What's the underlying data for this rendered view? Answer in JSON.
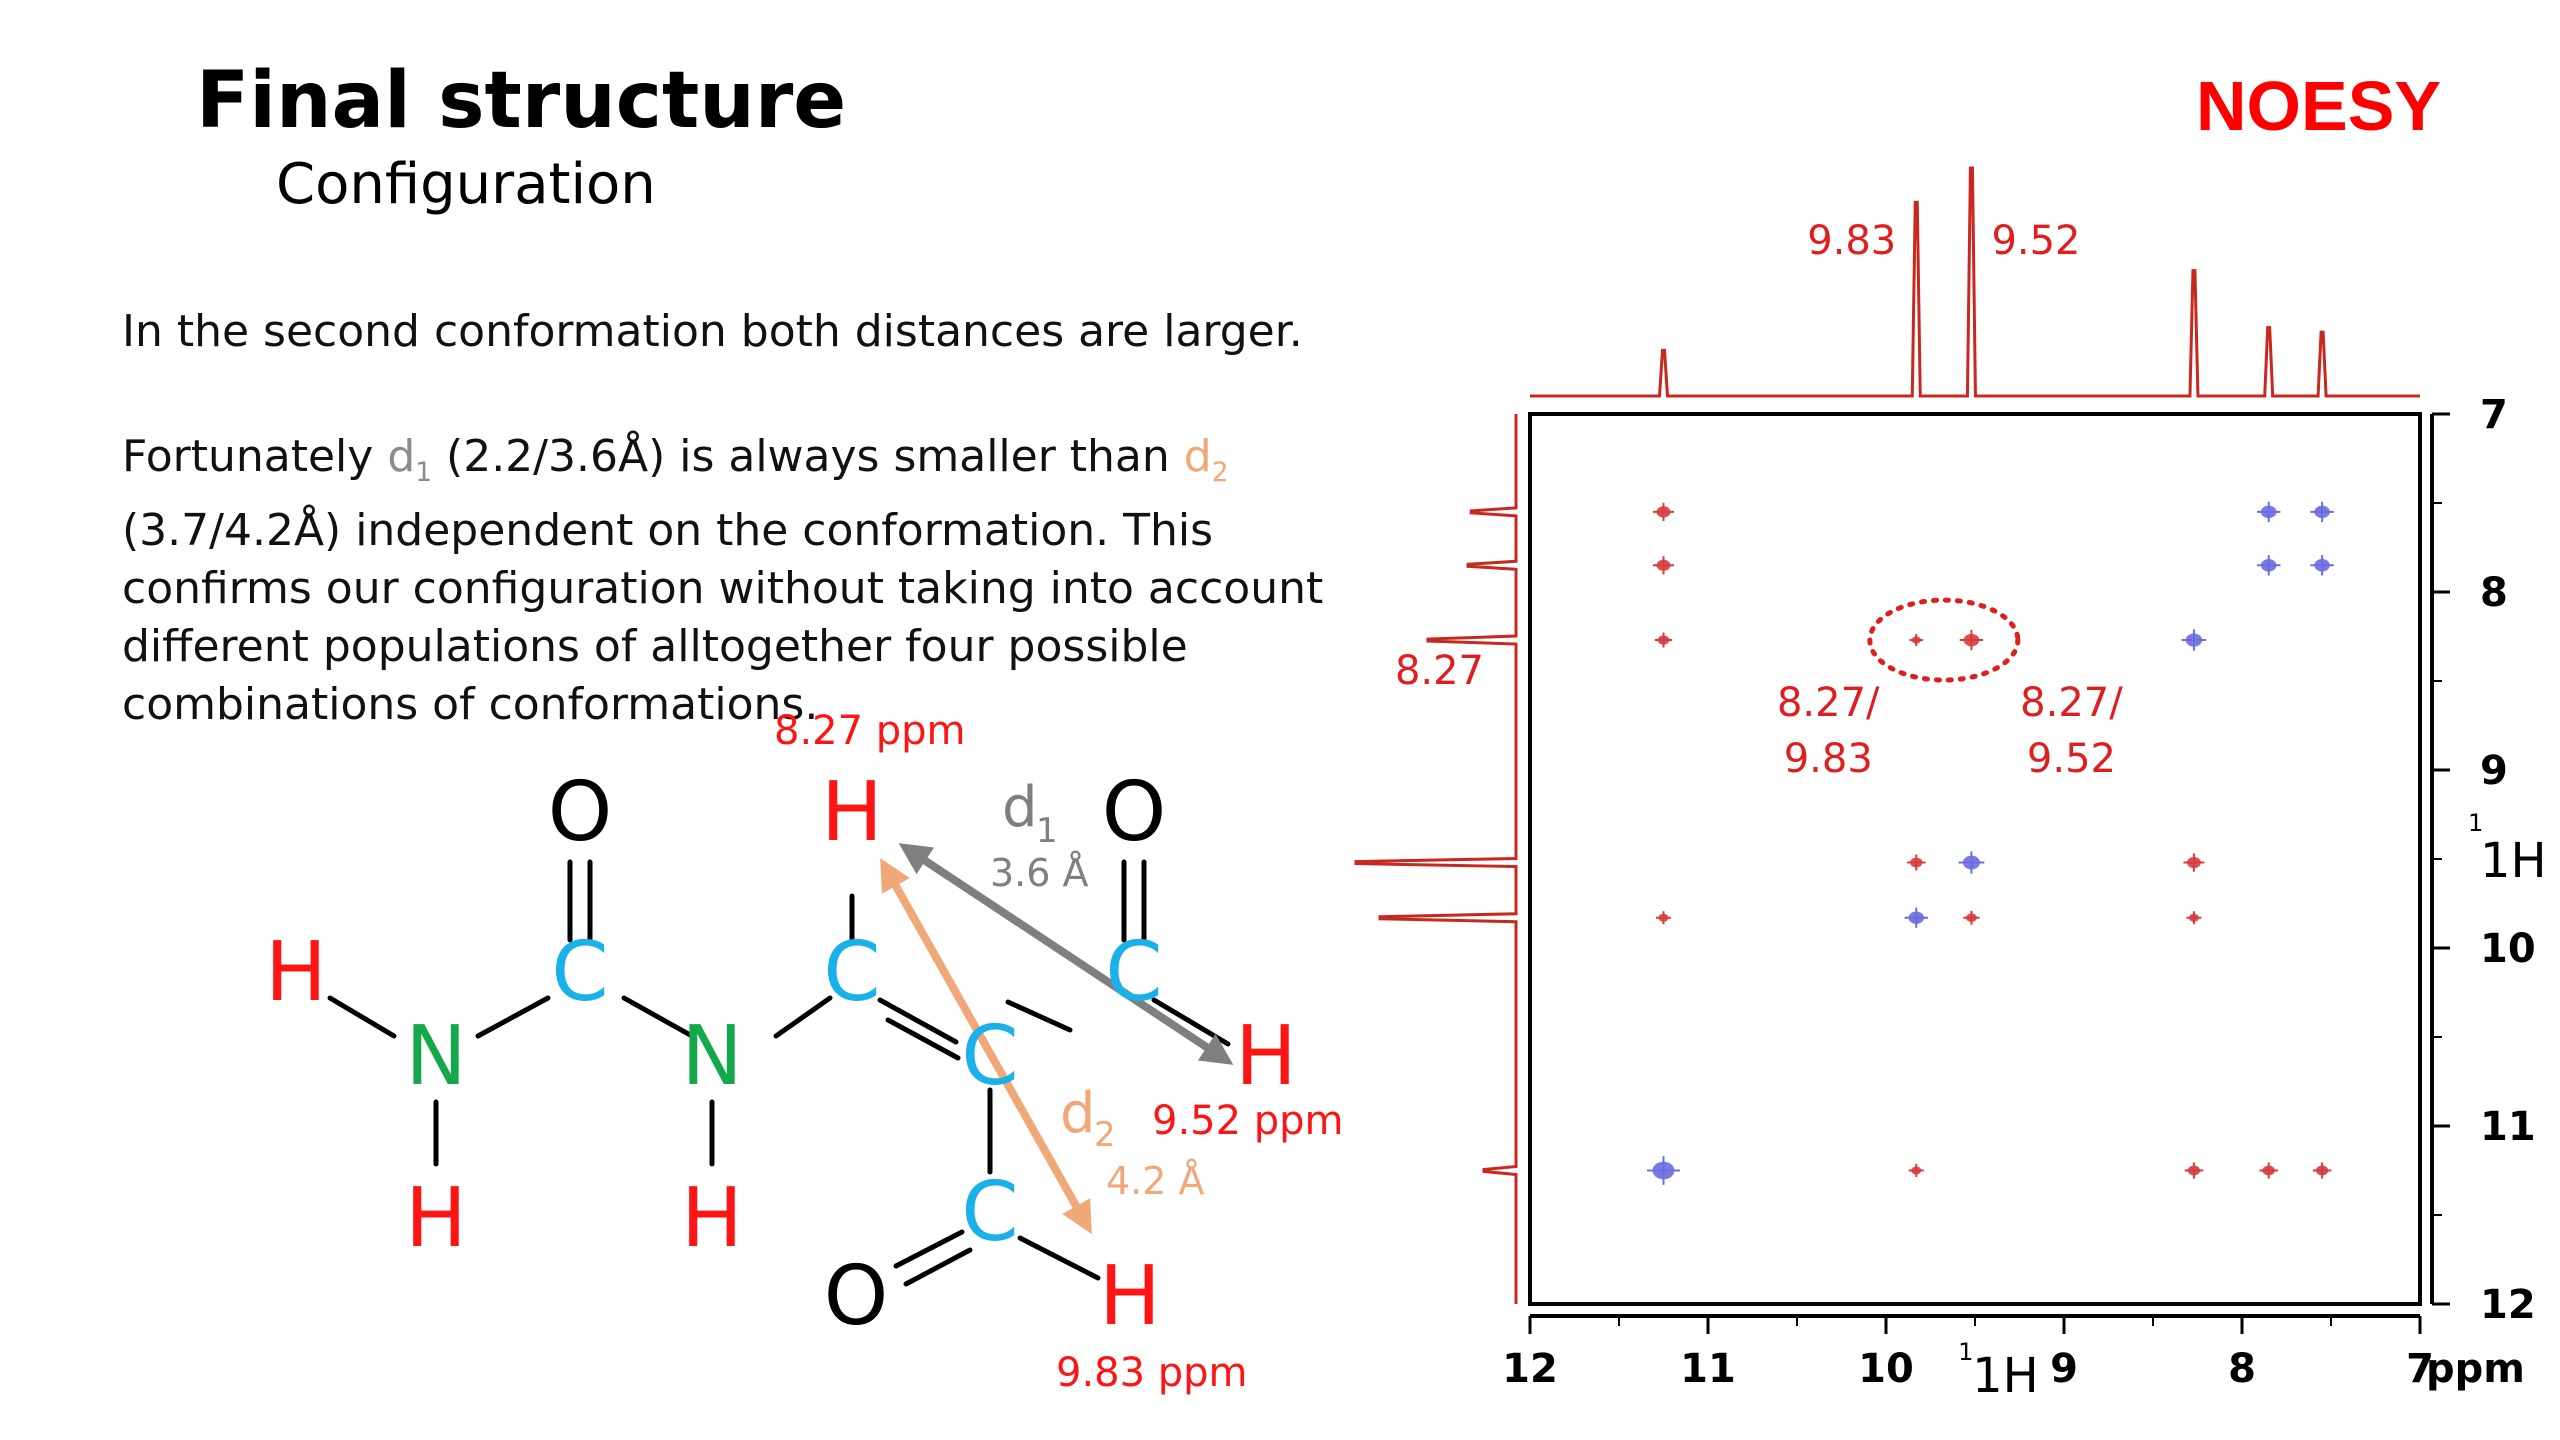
{
  "slide": {
    "title": "Final structure",
    "subtitle": "Configuration",
    "label": "NOESY",
    "paragraph1": "In the second conformation both distances are larger.",
    "paragraph2": {
      "t1": "Fortunately ",
      "d1": "d",
      "d1_sub": "1",
      "t2": " (2.2/3.6Å) is always smaller than ",
      "d2": "d",
      "d2_sub": "2",
      "t3": " (3.7/4.2Å) independent on the conformation. This confirms our configuration without taking into account different populations of alltogether four possible combinations of conformations."
    }
  },
  "molecule": {
    "atoms": {
      "o1": "O",
      "c1": "C",
      "h1": "H",
      "n1": "N",
      "h2": "H",
      "n2": "N",
      "h3": "H",
      "c2": "C",
      "h4": "H",
      "c3": "C",
      "o2": "O",
      "c4": "C",
      "h5": "H",
      "c5": "C",
      "o3": "O",
      "h6": "H"
    },
    "ppm_labels": {
      "top": "8.27 ppm",
      "right": "9.52 ppm",
      "bottom": "9.83 ppm"
    },
    "distances": {
      "d1": {
        "symbol": "d",
        "sub": "1",
        "value": "3.6 Å"
      },
      "d2": {
        "symbol": "d",
        "sub": "2",
        "value": "4.2 Å"
      }
    }
  },
  "colors": {
    "red": "#ff1414",
    "cyan": "#1ab0ea",
    "green": "#15a84a",
    "black": "#000000",
    "gray": "#7f7f7f",
    "peach": "#f0a878",
    "spectrum": "#c8281e",
    "positive_peak": "#d63c3c",
    "negative_peak": "#6c6ce0"
  },
  "chart_data": {
    "type": "scatter",
    "title": "NOESY",
    "xlabel": "1H",
    "ylabel": "1H",
    "x_unit": "ppm",
    "xlim": [
      12,
      7
    ],
    "ylim": [
      7,
      12
    ],
    "x_ticks": [
      "12",
      "11",
      "10",
      "9",
      "8",
      "7"
    ],
    "y_ticks": [
      "7",
      "8",
      "9",
      "10",
      "11",
      "12"
    ],
    "projection_peaks": [
      {
        "ppm": 11.25,
        "height": 0.2
      },
      {
        "ppm": 9.83,
        "height": 0.85
      },
      {
        "ppm": 9.52,
        "height": 1.0
      },
      {
        "ppm": 8.27,
        "height": 0.55
      },
      {
        "ppm": 7.85,
        "height": 0.3
      },
      {
        "ppm": 7.55,
        "height": 0.28
      }
    ],
    "projection_labels": [
      {
        "text": "9.83",
        "ppm": 9.83
      },
      {
        "text": "9.52",
        "ppm": 9.52
      }
    ],
    "y_projection_label": {
      "text": "8.27",
      "ppm": 8.27
    },
    "annotations": [
      {
        "line1": "8.27/",
        "line2": "9.83"
      },
      {
        "line1": "8.27/",
        "line2": "9.52"
      }
    ],
    "cross_peaks": [
      {
        "x": 11.25,
        "y": 7.55,
        "sign": "positive",
        "size": 1.0
      },
      {
        "x": 11.25,
        "y": 7.85,
        "sign": "positive",
        "size": 1.0
      },
      {
        "x": 11.25,
        "y": 8.27,
        "sign": "positive",
        "size": 0.7
      },
      {
        "x": 11.25,
        "y": 9.83,
        "sign": "positive",
        "size": 0.5
      },
      {
        "x": 11.25,
        "y": 11.25,
        "sign": "negative",
        "size": 2.0
      },
      {
        "x": 9.83,
        "y": 8.27,
        "sign": "positive",
        "size": 0.4
      },
      {
        "x": 9.52,
        "y": 8.27,
        "sign": "positive",
        "size": 1.2
      },
      {
        "x": 9.83,
        "y": 9.52,
        "sign": "positive",
        "size": 0.8
      },
      {
        "x": 9.52,
        "y": 9.52,
        "sign": "negative",
        "size": 1.4
      },
      {
        "x": 9.83,
        "y": 9.83,
        "sign": "negative",
        "size": 1.2
      },
      {
        "x": 9.52,
        "y": 9.83,
        "sign": "positive",
        "size": 0.6
      },
      {
        "x": 9.83,
        "y": 11.25,
        "sign": "positive",
        "size": 0.5
      },
      {
        "x": 8.27,
        "y": 8.27,
        "sign": "negative",
        "size": 1.3
      },
      {
        "x": 8.27,
        "y": 9.52,
        "sign": "positive",
        "size": 1.0
      },
      {
        "x": 8.27,
        "y": 9.83,
        "sign": "positive",
        "size": 0.5
      },
      {
        "x": 8.27,
        "y": 11.25,
        "sign": "positive",
        "size": 0.8
      },
      {
        "x": 7.85,
        "y": 7.55,
        "sign": "negative",
        "size": 1.2
      },
      {
        "x": 7.55,
        "y": 7.55,
        "sign": "negative",
        "size": 1.2
      },
      {
        "x": 7.85,
        "y": 7.85,
        "sign": "negative",
        "size": 1.2
      },
      {
        "x": 7.55,
        "y": 7.85,
        "sign": "negative",
        "size": 1.2
      },
      {
        "x": 7.85,
        "y": 11.25,
        "sign": "positive",
        "size": 0.8
      },
      {
        "x": 7.55,
        "y": 11.25,
        "sign": "positive",
        "size": 0.8
      }
    ],
    "highlighted_region": {
      "x": [
        9.83,
        9.52
      ],
      "y": 8.27
    },
    "grid": false
  }
}
